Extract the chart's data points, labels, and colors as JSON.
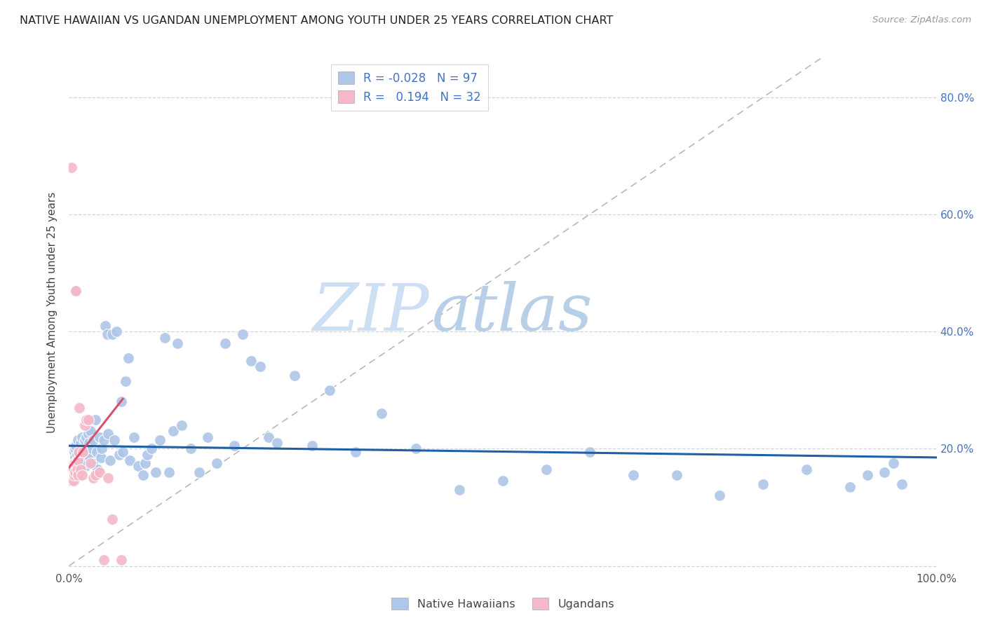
{
  "title": "NATIVE HAWAIIAN VS UGANDAN UNEMPLOYMENT AMONG YOUTH UNDER 25 YEARS CORRELATION CHART",
  "source": "Source: ZipAtlas.com",
  "ylabel": "Unemployment Among Youth under 25 years",
  "legend_R_N": [
    {
      "R": "-0.028",
      "N": "97",
      "color": "#aec6e8"
    },
    {
      "R": "0.194",
      "N": "32",
      "color": "#f5b8c8"
    }
  ],
  "nh_dot_color": "#aec6e8",
  "ug_dot_color": "#f5b8c8",
  "nh_line_color": "#1f5fa6",
  "ug_line_color": "#d94f6e",
  "diag_line_color": "#b8b8b8",
  "right_axis_color": "#4472c4",
  "watermark_zip_color": "#cddff5",
  "watermark_atlas_color": "#b8cfe8",
  "title_color": "#222222",
  "source_color": "#999999",
  "grid_color": "#d0d5dd",
  "xlim": [
    0.0,
    1.0
  ],
  "ylim": [
    -0.005,
    0.87
  ],
  "ytick_positions": [
    0.0,
    0.2,
    0.4,
    0.6,
    0.8
  ],
  "ytick_labels_right": [
    "",
    "20.0%",
    "40.0%",
    "60.0%",
    "80.0%"
  ],
  "nh_x": [
    0.002,
    0.003,
    0.004,
    0.005,
    0.006,
    0.006,
    0.007,
    0.007,
    0.008,
    0.008,
    0.009,
    0.01,
    0.01,
    0.011,
    0.012,
    0.012,
    0.013,
    0.014,
    0.015,
    0.015,
    0.016,
    0.017,
    0.018,
    0.019,
    0.02,
    0.021,
    0.022,
    0.023,
    0.024,
    0.025,
    0.026,
    0.027,
    0.028,
    0.03,
    0.032,
    0.033,
    0.035,
    0.037,
    0.038,
    0.04,
    0.042,
    0.044,
    0.045,
    0.047,
    0.05,
    0.052,
    0.055,
    0.058,
    0.06,
    0.062,
    0.065,
    0.068,
    0.07,
    0.075,
    0.08,
    0.085,
    0.088,
    0.09,
    0.095,
    0.1,
    0.105,
    0.11,
    0.115,
    0.12,
    0.125,
    0.13,
    0.14,
    0.15,
    0.16,
    0.17,
    0.18,
    0.19,
    0.2,
    0.21,
    0.22,
    0.23,
    0.24,
    0.26,
    0.28,
    0.3,
    0.33,
    0.36,
    0.4,
    0.45,
    0.5,
    0.55,
    0.6,
    0.65,
    0.7,
    0.75,
    0.8,
    0.85,
    0.9,
    0.92,
    0.94,
    0.95,
    0.96
  ],
  "nh_y": [
    0.155,
    0.16,
    0.145,
    0.165,
    0.175,
    0.195,
    0.185,
    0.2,
    0.17,
    0.205,
    0.19,
    0.178,
    0.215,
    0.183,
    0.195,
    0.165,
    0.21,
    0.175,
    0.2,
    0.22,
    0.185,
    0.195,
    0.215,
    0.17,
    0.22,
    0.195,
    0.225,
    0.21,
    0.185,
    0.23,
    0.2,
    0.175,
    0.215,
    0.25,
    0.195,
    0.165,
    0.22,
    0.185,
    0.2,
    0.215,
    0.41,
    0.395,
    0.225,
    0.18,
    0.395,
    0.215,
    0.4,
    0.19,
    0.28,
    0.195,
    0.315,
    0.355,
    0.18,
    0.22,
    0.17,
    0.155,
    0.175,
    0.19,
    0.2,
    0.16,
    0.215,
    0.39,
    0.16,
    0.23,
    0.38,
    0.24,
    0.2,
    0.16,
    0.22,
    0.175,
    0.38,
    0.205,
    0.395,
    0.35,
    0.34,
    0.22,
    0.21,
    0.325,
    0.205,
    0.3,
    0.195,
    0.26,
    0.2,
    0.13,
    0.145,
    0.165,
    0.195,
    0.155,
    0.155,
    0.12,
    0.14,
    0.165,
    0.135,
    0.155,
    0.16,
    0.175,
    0.14
  ],
  "ug_x": [
    0.001,
    0.002,
    0.003,
    0.003,
    0.004,
    0.005,
    0.005,
    0.006,
    0.006,
    0.007,
    0.007,
    0.008,
    0.008,
    0.009,
    0.01,
    0.01,
    0.011,
    0.012,
    0.013,
    0.015,
    0.016,
    0.018,
    0.02,
    0.022,
    0.025,
    0.028,
    0.03,
    0.035,
    0.04,
    0.045,
    0.05,
    0.06
  ],
  "ug_y": [
    0.15,
    0.145,
    0.155,
    0.68,
    0.16,
    0.145,
    0.165,
    0.155,
    0.175,
    0.16,
    0.47,
    0.175,
    0.47,
    0.165,
    0.18,
    0.155,
    0.195,
    0.27,
    0.165,
    0.155,
    0.195,
    0.24,
    0.25,
    0.25,
    0.175,
    0.15,
    0.155,
    0.16,
    0.01,
    0.15,
    0.08,
    0.01
  ],
  "nh_trend_x": [
    0.0,
    1.0
  ],
  "nh_trend_y": [
    0.205,
    0.185
  ],
  "ug_trend_x": [
    0.0,
    0.062
  ],
  "ug_trend_y": [
    0.168,
    0.285
  ]
}
